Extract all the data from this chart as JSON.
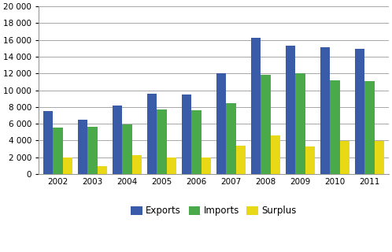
{
  "years": [
    2002,
    2003,
    2004,
    2005,
    2006,
    2007,
    2008,
    2009,
    2010,
    2011
  ],
  "exports": [
    7500,
    6500,
    8200,
    9600,
    9500,
    12000,
    16300,
    15300,
    15100,
    14900
  ],
  "imports": [
    5500,
    5650,
    5950,
    7750,
    7650,
    8500,
    11850,
    12000,
    11200,
    11100
  ],
  "surplus": [
    2000,
    900,
    2300,
    2000,
    1950,
    3400,
    4600,
    3300,
    3900,
    3900
  ],
  "bar_colors": {
    "exports": "#3a5ca8",
    "imports": "#4aaa4a",
    "surplus": "#e8d816"
  },
  "ylim": [
    0,
    20000
  ],
  "yticks": [
    0,
    2000,
    4000,
    6000,
    8000,
    10000,
    12000,
    14000,
    16000,
    18000,
    20000
  ],
  "legend_labels": [
    "Exports",
    "Imports",
    "Surplus"
  ],
  "bar_width": 0.28,
  "background_color": "#ffffff",
  "grid_color": "#999999",
  "tick_fontsize": 7.5,
  "legend_fontsize": 8.5
}
